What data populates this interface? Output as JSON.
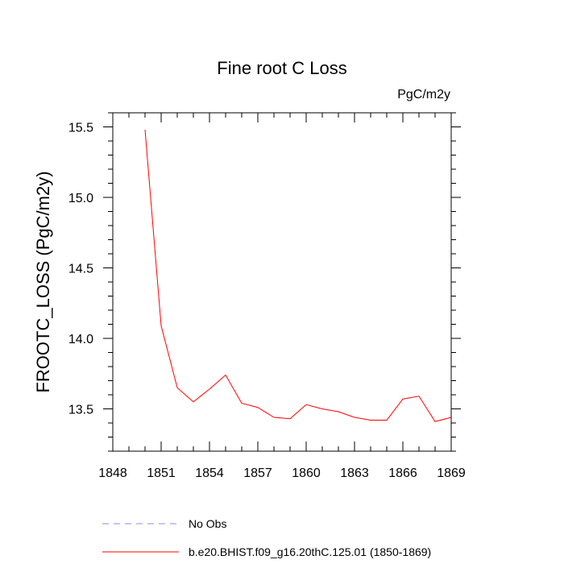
{
  "chart_data": {
    "type": "line",
    "title": "Fine root C Loss",
    "units_label": "PgC/m2y",
    "ylabel": "FROOTC_LOSS  (PgC/m2y)",
    "xlabel": "",
    "xlim": [
      1848,
      1869
    ],
    "ylim": [
      13.2,
      15.6
    ],
    "xticks": [
      1848,
      1851,
      1854,
      1857,
      1860,
      1863,
      1866,
      1869
    ],
    "yticks": [
      13.5,
      14.0,
      14.5,
      15.0,
      15.5
    ],
    "ytick_labels": [
      "13.5",
      "14.0",
      "14.5",
      "15.0",
      "15.5"
    ],
    "grid": false,
    "legend_position": "bottom",
    "series": [
      {
        "name": "No Obs",
        "color": "#8a8aff",
        "style": "dashed",
        "x": [],
        "y": []
      },
      {
        "name": "b.e20.BHIST.f09_g16.20thC.125.01 (1850-1869)",
        "color": "#ff0000",
        "style": "solid",
        "x": [
          1850,
          1851,
          1852,
          1853,
          1854,
          1855,
          1856,
          1857,
          1858,
          1859,
          1860,
          1861,
          1862,
          1863,
          1864,
          1865,
          1866,
          1867,
          1868,
          1869
        ],
        "y": [
          15.48,
          14.09,
          13.65,
          13.55,
          13.64,
          13.74,
          13.54,
          13.51,
          13.44,
          13.43,
          13.53,
          13.5,
          13.48,
          13.44,
          13.42,
          13.42,
          13.57,
          13.59,
          13.41,
          13.44
        ]
      }
    ]
  }
}
